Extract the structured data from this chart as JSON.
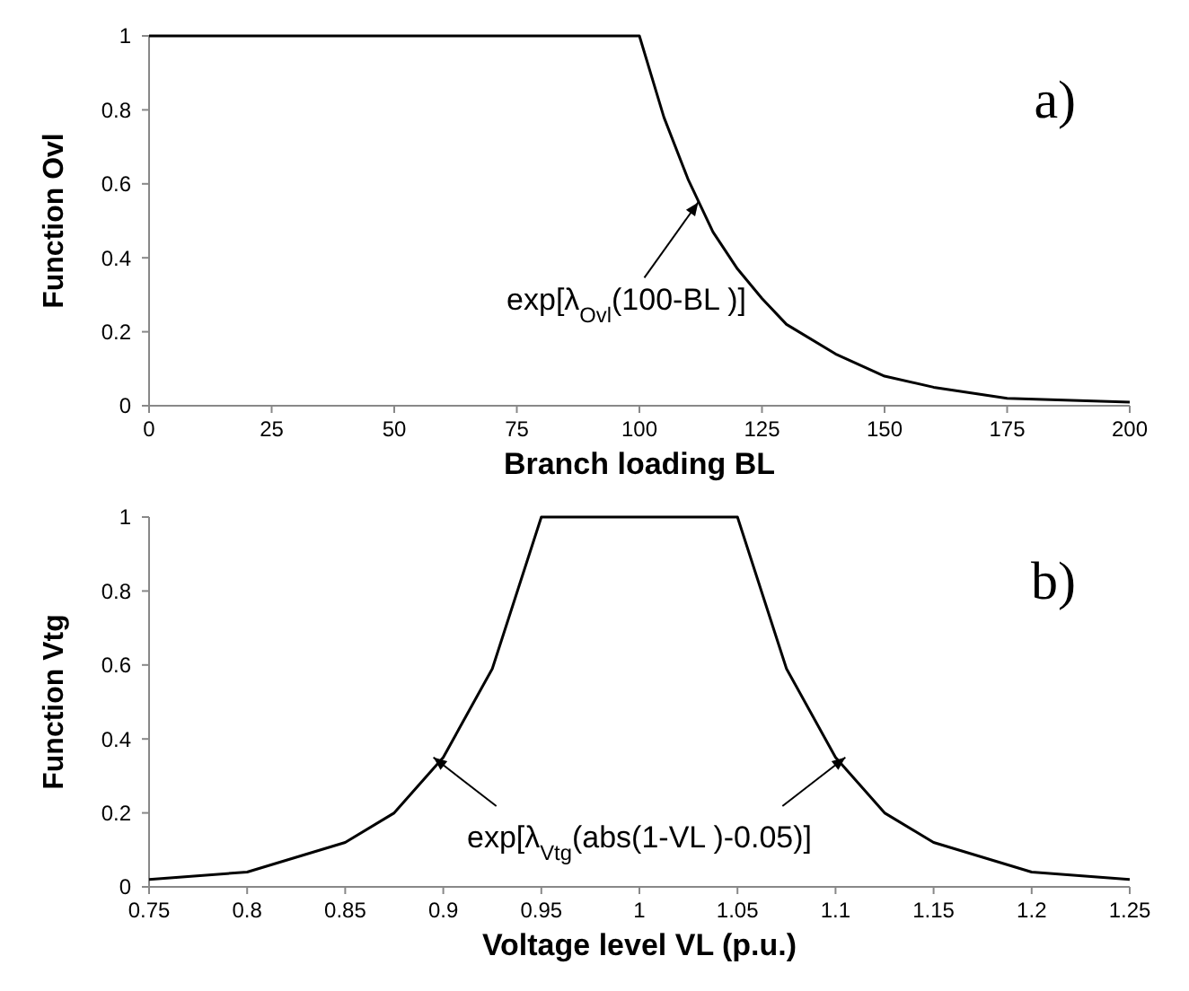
{
  "chart_data": [
    {
      "type": "line",
      "xlabel": "Branch loading BL",
      "ylabel": "Function Ovl",
      "x": [
        0,
        100,
        105,
        110,
        115,
        120,
        125,
        130,
        140,
        150,
        160,
        175,
        200
      ],
      "series": [
        {
          "color": "#000000",
          "values": [
            1,
            1,
            0.78,
            0.61,
            0.47,
            0.37,
            0.29,
            0.22,
            0.14,
            0.08,
            0.05,
            0.02,
            0.01
          ]
        }
      ],
      "xlim": [
        0,
        200
      ],
      "xticks": [
        0,
        25,
        50,
        75,
        100,
        125,
        150,
        175,
        200
      ],
      "ylim": [
        0,
        1
      ],
      "yticks": [
        0,
        0.2,
        0.4,
        0.6,
        0.8,
        1
      ],
      "annotations": [
        "a)",
        {
          "text": "exp[λ$_{Ovl}$(100-BL )]",
          "x": 112,
          "y": 0.55
        }
      ],
      "grid": false,
      "marker": "none",
      "line_style": "solid"
    },
    {
      "type": "line",
      "xlabel": "Voltage level VL  (p.u.)",
      "ylabel": "Function Vtg",
      "x": [
        0.75,
        0.8,
        0.85,
        0.875,
        0.9,
        0.925,
        0.95,
        1.05,
        1.075,
        1.1,
        1.125,
        1.15,
        1.2,
        1.25
      ],
      "series": [
        {
          "color": "#000000",
          "values": [
            0.02,
            0.04,
            0.12,
            0.2,
            0.35,
            0.59,
            1,
            1,
            0.59,
            0.35,
            0.2,
            0.12,
            0.04,
            0.02
          ]
        }
      ],
      "xlim": [
        0.75,
        1.25
      ],
      "xticks": [
        0.75,
        0.8,
        0.85,
        0.9,
        0.95,
        1,
        1.05,
        1.1,
        1.15,
        1.2,
        1.25
      ],
      "ylim": [
        0,
        1
      ],
      "yticks": [
        0,
        0.2,
        0.4,
        0.6,
        0.8,
        1
      ],
      "annotations": [
        "b)",
        {
          "text": "exp[λ$_{Vtg}$(abs(1-VL )-0.05)]",
          "x": 0.895,
          "y": 0.35
        }
      ],
      "grid": false,
      "marker": "none",
      "line_style": "solid"
    }
  ]
}
